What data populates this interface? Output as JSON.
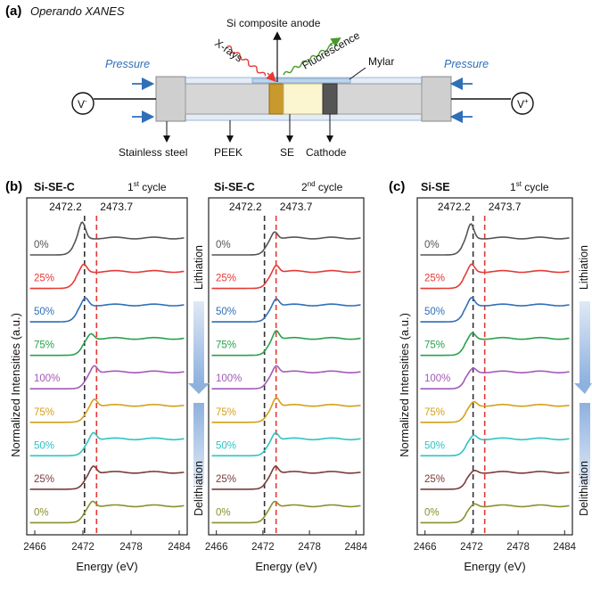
{
  "panel_a": {
    "letter": "(a)",
    "title": "Operando XANES",
    "labels": {
      "anode": "Si composite anode",
      "xrays": "X-rays",
      "fluorescence": "Fluorescence",
      "mylar": "Mylar",
      "pressure_left": "Pressure",
      "pressure_right": "Pressure",
      "v_minus": "V",
      "v_minus_sup": "-",
      "v_plus": "V",
      "v_plus_sup": "+",
      "stainless": "Stainless steel",
      "peek": "PEEK",
      "se": "SE",
      "cathode": "Cathode"
    }
  },
  "panel_b": {
    "letter": "(b)",
    "left": {
      "header": "Si-SE-C",
      "cycle_num": "1",
      "cycle_sup": "st",
      "cycle_txt": " cycle"
    },
    "right": {
      "header": "Si-SE-C",
      "cycle_num": "2",
      "cycle_sup": "nd",
      "cycle_txt": " cycle"
    }
  },
  "panel_c": {
    "letter": "(c)",
    "header": "Si-SE",
    "cycle_num": "1",
    "cycle_sup": "st",
    "cycle_txt": " cycle"
  },
  "common": {
    "ylabel": "Normalized Intensities (a.u.)",
    "xlabel": "Energy (eV)",
    "lithiation": "Lithiation",
    "delithiation": "Delithiation"
  },
  "chart_data": [
    {
      "type": "line",
      "title": "Si-SE-C 1st cycle",
      "xlabel": "Energy (eV)",
      "ylabel": "Normalized Intensities (a.u.)",
      "xlim": [
        2465,
        2485
      ],
      "xticks": [
        2466,
        2472,
        2478,
        2484
      ],
      "reference_lines": [
        {
          "x": 2472.2,
          "label": "2472.2",
          "color": "#333333"
        },
        {
          "x": 2473.7,
          "label": "2473.7",
          "color": "#e53935"
        }
      ],
      "series": [
        {
          "name": "0%",
          "color": "#555555",
          "peak_energy": 2471.9,
          "peak_height": 1.5
        },
        {
          "name": "25%",
          "color": "#e53935",
          "peak_energy": 2472.1,
          "peak_height": 1.0
        },
        {
          "name": "50%",
          "color": "#2f6fb8",
          "peak_energy": 2472.3,
          "peak_height": 1.0
        },
        {
          "name": "75%",
          "color": "#27a24a",
          "peak_energy": 2473.0,
          "peak_height": 0.9
        },
        {
          "name": "100%",
          "color": "#a25ab8",
          "peak_energy": 2473.4,
          "peak_height": 1.0
        },
        {
          "name": "75%",
          "color": "#d4a017",
          "peak_energy": 2473.4,
          "peak_height": 1.0
        },
        {
          "name": "50%",
          "color": "#2cc4c4",
          "peak_energy": 2473.3,
          "peak_height": 1.0
        },
        {
          "name": "25%",
          "color": "#7a3b3b",
          "peak_energy": 2473.3,
          "peak_height": 1.0
        },
        {
          "name": "0%",
          "color": "#8b8f2e",
          "peak_energy": 2473.2,
          "peak_height": 0.9
        }
      ]
    },
    {
      "type": "line",
      "title": "Si-SE-C 2nd cycle",
      "xlabel": "Energy (eV)",
      "ylabel": "Normalized Intensities (a.u.)",
      "xlim": [
        2465,
        2485
      ],
      "xticks": [
        2466,
        2472,
        2478,
        2484
      ],
      "reference_lines": [
        {
          "x": 2472.2,
          "label": "2472.2",
          "color": "#333333"
        },
        {
          "x": 2473.7,
          "label": "2473.7",
          "color": "#e53935"
        }
      ],
      "series": [
        {
          "name": "0%",
          "color": "#555555",
          "peak_energy": 2473.5,
          "peak_height": 1.0
        },
        {
          "name": "25%",
          "color": "#e53935",
          "peak_energy": 2473.7,
          "peak_height": 1.0
        },
        {
          "name": "50%",
          "color": "#2f6fb8",
          "peak_energy": 2473.7,
          "peak_height": 1.0
        },
        {
          "name": "75%",
          "color": "#27a24a",
          "peak_energy": 2473.7,
          "peak_height": 1.1
        },
        {
          "name": "100%",
          "color": "#a25ab8",
          "peak_energy": 2473.7,
          "peak_height": 1.0
        },
        {
          "name": "75%",
          "color": "#d4a017",
          "peak_energy": 2473.7,
          "peak_height": 1.1
        },
        {
          "name": "50%",
          "color": "#2cc4c4",
          "peak_energy": 2473.6,
          "peak_height": 1.0
        },
        {
          "name": "25%",
          "color": "#7a3b3b",
          "peak_energy": 2473.6,
          "peak_height": 1.0
        },
        {
          "name": "0%",
          "color": "#8b8f2e",
          "peak_energy": 2473.5,
          "peak_height": 0.9
        }
      ]
    },
    {
      "type": "line",
      "title": "Si-SE 1st cycle",
      "xlabel": "Energy (eV)",
      "ylabel": "Normalized Intensities (a.u.)",
      "xlim": [
        2465,
        2485
      ],
      "xticks": [
        2466,
        2472,
        2478,
        2484
      ],
      "reference_lines": [
        {
          "x": 2472.2,
          "label": "2472.2",
          "color": "#333333"
        },
        {
          "x": 2473.7,
          "label": "2473.7",
          "color": "#e53935"
        }
      ],
      "series": [
        {
          "name": "0%",
          "color": "#555555",
          "peak_energy": 2471.9,
          "peak_height": 1.4
        },
        {
          "name": "25%",
          "color": "#e53935",
          "peak_energy": 2472.0,
          "peak_height": 1.0
        },
        {
          "name": "50%",
          "color": "#2f6fb8",
          "peak_energy": 2472.0,
          "peak_height": 1.0
        },
        {
          "name": "75%",
          "color": "#27a24a",
          "peak_energy": 2472.1,
          "peak_height": 0.9
        },
        {
          "name": "100%",
          "color": "#a25ab8",
          "peak_energy": 2472.2,
          "peak_height": 0.8
        },
        {
          "name": "75%",
          "color": "#d4a017",
          "peak_energy": 2472.3,
          "peak_height": 0.8
        },
        {
          "name": "50%",
          "color": "#2cc4c4",
          "peak_energy": 2472.3,
          "peak_height": 0.8
        },
        {
          "name": "25%",
          "color": "#7a3b3b",
          "peak_energy": 2472.4,
          "peak_height": 0.7
        },
        {
          "name": "0%",
          "color": "#8b8f2e",
          "peak_energy": 2472.4,
          "peak_height": 0.7
        }
      ]
    }
  ]
}
